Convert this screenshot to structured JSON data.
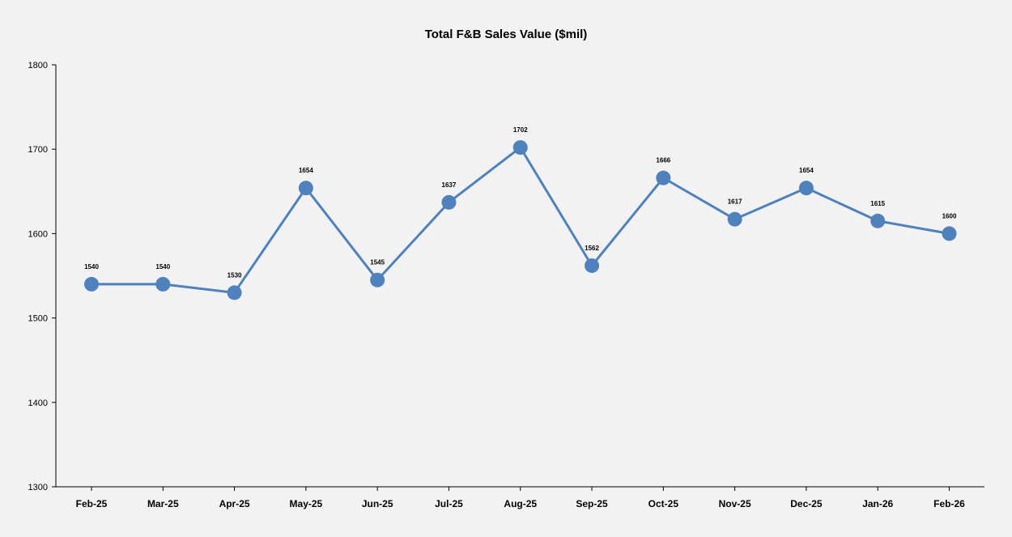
{
  "chart_data": {
    "type": "line",
    "title": "Total F&B Sales Value ($mil)",
    "xlabel": "",
    "ylabel": "",
    "categories": [
      "Feb-25",
      "Mar-25",
      "Apr-25",
      "May-25",
      "Jun-25",
      "Jul-25",
      "Aug-25",
      "Sep-25",
      "Oct-25",
      "Nov-25",
      "Dec-25",
      "Jan-26",
      "Feb-26"
    ],
    "series": [
      {
        "values": [
          1540,
          1540,
          1530,
          1654,
          1545,
          1637,
          1702,
          1562,
          1666,
          1617,
          1654,
          1615,
          1600
        ]
      }
    ],
    "ylim": [
      1300,
      1800
    ],
    "yticks": [
      1300,
      1400,
      1500,
      1600,
      1700,
      1800
    ],
    "grid": false,
    "legend": "none",
    "data_labels": true,
    "colors": {
      "line": "#4f81bd",
      "marker": "#4f81bd",
      "background": "#f2f2f2",
      "axis": "#000000"
    }
  }
}
